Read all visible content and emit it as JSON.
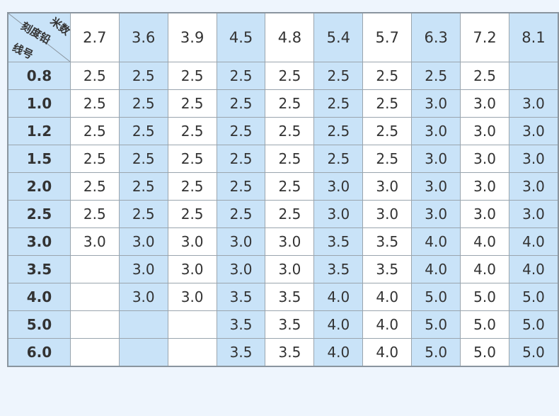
{
  "table": {
    "corner": {
      "top": "米数",
      "middle": "刻度铅",
      "bottom": "线号"
    },
    "columns": [
      "2.7",
      "3.6",
      "3.9",
      "4.5",
      "4.8",
      "5.4",
      "5.7",
      "6.3",
      "7.2",
      "8.1"
    ],
    "rows": [
      {
        "label": "0.8",
        "cells": [
          "2.5",
          "2.5",
          "2.5",
          "2.5",
          "2.5",
          "2.5",
          "2.5",
          "2.5",
          "2.5",
          null
        ]
      },
      {
        "label": "1.0",
        "cells": [
          "2.5",
          "2.5",
          "2.5",
          "2.5",
          "2.5",
          "2.5",
          "2.5",
          "3.0",
          "3.0",
          "3.0"
        ]
      },
      {
        "label": "1.2",
        "cells": [
          "2.5",
          "2.5",
          "2.5",
          "2.5",
          "2.5",
          "2.5",
          "2.5",
          "3.0",
          "3.0",
          "3.0"
        ]
      },
      {
        "label": "1.5",
        "cells": [
          "2.5",
          "2.5",
          "2.5",
          "2.5",
          "2.5",
          "2.5",
          "2.5",
          "3.0",
          "3.0",
          "3.0"
        ]
      },
      {
        "label": "2.0",
        "cells": [
          "2.5",
          "2.5",
          "2.5",
          "2.5",
          "2.5",
          "3.0",
          "3.0",
          "3.0",
          "3.0",
          "3.0"
        ]
      },
      {
        "label": "2.5",
        "cells": [
          "2.5",
          "2.5",
          "2.5",
          "2.5",
          "2.5",
          "3.0",
          "3.0",
          "3.0",
          "3.0",
          "3.0"
        ]
      },
      {
        "label": "3.0",
        "cells": [
          "3.0",
          "3.0",
          "3.0",
          "3.0",
          "3.0",
          "3.5",
          "3.5",
          "4.0",
          "4.0",
          "4.0"
        ]
      },
      {
        "label": "3.5",
        "cells": [
          null,
          "3.0",
          "3.0",
          "3.0",
          "3.0",
          "3.5",
          "3.5",
          "4.0",
          "4.0",
          "4.0"
        ]
      },
      {
        "label": "4.0",
        "cells": [
          null,
          "3.0",
          "3.0",
          "3.5",
          "3.5",
          "4.0",
          "4.0",
          "5.0",
          "5.0",
          "5.0"
        ]
      },
      {
        "label": "5.0",
        "cells": [
          null,
          null,
          null,
          "3.5",
          "3.5",
          "4.0",
          "4.0",
          "5.0",
          "5.0",
          "5.0"
        ]
      },
      {
        "label": "6.0",
        "cells": [
          null,
          null,
          null,
          "3.5",
          "3.5",
          "4.0",
          "4.0",
          "5.0",
          "5.0",
          "5.0"
        ]
      }
    ]
  }
}
